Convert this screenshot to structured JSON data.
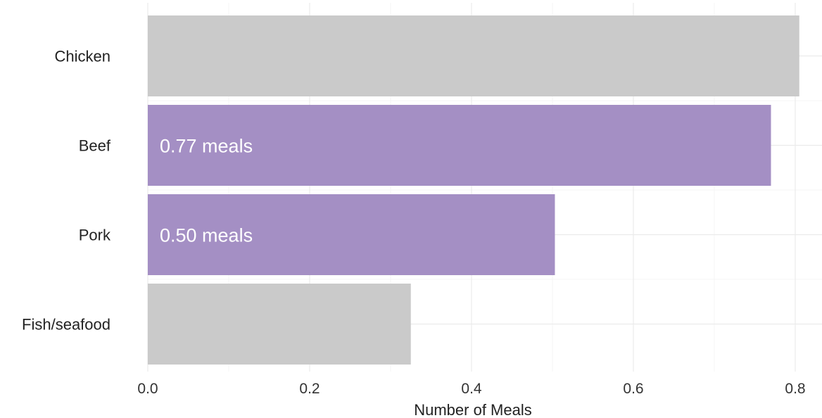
{
  "chart_data": {
    "type": "bar",
    "orientation": "horizontal",
    "categories": [
      "Chicken",
      "Beef",
      "Pork",
      "Fish/seafood"
    ],
    "values": [
      0.805,
      0.77,
      0.503,
      0.325
    ],
    "highlight": [
      false,
      true,
      true,
      false
    ],
    "bar_labels": [
      "",
      "0.77 meals",
      "0.50 meals",
      ""
    ],
    "xlabel": "Number of Meals",
    "ylabel": "",
    "xlim": [
      0,
      0.83
    ],
    "x_ticks": [
      0.0,
      0.2,
      0.4,
      0.6,
      0.8
    ],
    "x_tick_labels": [
      "0.0",
      "0.2",
      "0.4",
      "0.6",
      "0.8"
    ],
    "grid": true,
    "legend": "none",
    "colors": {
      "default": "#cacaca",
      "highlight": "#a48fc4",
      "label_text": "#ffffff"
    }
  }
}
